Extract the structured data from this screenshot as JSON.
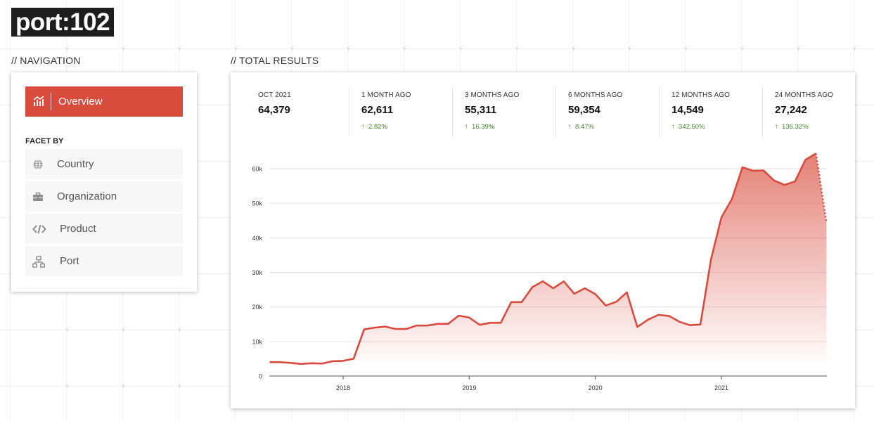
{
  "logo": "port:102",
  "navigation": {
    "heading": "// NAVIGATION",
    "overview_label": "Overview",
    "facet_heading": "FACET BY",
    "facets": [
      {
        "label": "Country",
        "icon": "globe-icon"
      },
      {
        "label": "Organization",
        "icon": "briefcase-icon"
      },
      {
        "label": "Product",
        "icon": "code-icon"
      },
      {
        "label": "Port",
        "icon": "network-icon"
      }
    ]
  },
  "results": {
    "heading": "// TOTAL RESULTS",
    "stats": [
      {
        "label": "OCT 2021",
        "value": "64,379",
        "change": ""
      },
      {
        "label": "1 MONTH AGO",
        "value": "62,611",
        "change": "2.82%"
      },
      {
        "label": "3 MONTHS AGO",
        "value": "55,311",
        "change": "16.39%"
      },
      {
        "label": "6 MONTHS AGO",
        "value": "59,354",
        "change": "8.47%"
      },
      {
        "label": "12 MONTHS AGO",
        "value": "14,549",
        "change": "342.50%"
      },
      {
        "label": "24 MONTHS AGO",
        "value": "27,242",
        "change": "136.32%"
      }
    ]
  },
  "colors": {
    "accent": "#d94b3c",
    "positive": "#3d8b26"
  },
  "chart_data": {
    "type": "area",
    "title": "",
    "xlabel": "",
    "ylabel": "",
    "x_ticks": [
      "2018",
      "2019",
      "2020",
      "2021"
    ],
    "y_ticks": [
      "0",
      "10k",
      "20k",
      "30k",
      "40k",
      "50k",
      "60k"
    ],
    "ylim": [
      0,
      65000
    ],
    "grid": true,
    "series": [
      {
        "x": [
          "2017-06",
          "2017-07",
          "2017-08",
          "2017-09",
          "2017-10",
          "2017-11",
          "2017-12",
          "2018-01",
          "2018-02",
          "2018-03",
          "2018-04",
          "2018-05",
          "2018-06",
          "2018-07",
          "2018-08",
          "2018-09",
          "2018-10",
          "2018-11",
          "2018-12",
          "2019-01",
          "2019-02",
          "2019-03",
          "2019-04",
          "2019-05",
          "2019-06",
          "2019-07",
          "2019-08",
          "2019-09",
          "2019-10",
          "2019-11",
          "2019-12",
          "2020-01",
          "2020-02",
          "2020-03",
          "2020-04",
          "2020-05",
          "2020-06",
          "2020-07",
          "2020-08",
          "2020-09",
          "2020-10",
          "2020-11",
          "2020-12",
          "2021-01",
          "2021-02",
          "2021-03",
          "2021-04",
          "2021-05",
          "2021-06",
          "2021-07",
          "2021-08",
          "2021-09",
          "2021-10",
          "2021-11"
        ],
        "values": [
          4000,
          4000,
          3800,
          3500,
          3700,
          3600,
          4300,
          4400,
          5000,
          13500,
          14000,
          14300,
          13600,
          13600,
          14600,
          14600,
          15100,
          15100,
          17500,
          16900,
          14800,
          15400,
          15400,
          21400,
          21400,
          25700,
          27400,
          25400,
          27400,
          23800,
          25400,
          23700,
          20400,
          21500,
          24200,
          14200,
          16300,
          17700,
          17400,
          15700,
          14700,
          14900,
          33700,
          45900,
          51200,
          60400,
          59400,
          59500,
          56600,
          55300,
          56300,
          62600,
          64400,
          44300
        ]
      }
    ]
  }
}
